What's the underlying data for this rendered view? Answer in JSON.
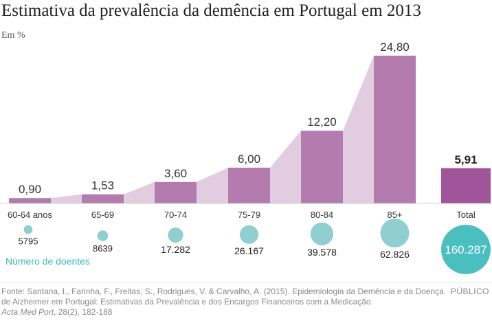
{
  "title": "Estimativa da prevalência da demência em Portugal em 2013",
  "subtitle": "Em %",
  "colors": {
    "bar": "#b47cae",
    "total_bar": "#a0549a",
    "area": "#e2cde0",
    "circle": "#8fcfd0",
    "total_circle": "#4bbfc0",
    "legend_text": "#3fb8b8"
  },
  "chart_data": {
    "type": "bar",
    "categories": [
      "60-64 anos",
      "65-69",
      "70-74",
      "75-79",
      "80-84",
      "85+"
    ],
    "values": [
      0.9,
      1.53,
      3.6,
      6.0,
      12.2,
      24.8
    ],
    "value_labels": [
      "0,90",
      "1,53",
      "3,60",
      "6,00",
      "12,20",
      "24,80"
    ],
    "total": {
      "label": "Total",
      "value": 5.91,
      "value_label": "5,91"
    },
    "ylabel": "Em %",
    "patients": {
      "legend": "Número de doentes",
      "values": [
        5795,
        8639,
        17282,
        26167,
        39578,
        62826
      ],
      "labels": [
        "5795",
        "8639",
        "17.282",
        "26.167",
        "39.578",
        "62.826"
      ],
      "total_value": 160287,
      "total_label": "160.287"
    }
  },
  "source": {
    "line1": "Fonte: Santana, I., Farinha, F., Freitas, S., Rodrigues, V. & Carvalho, A. (2015). Epidemiologia da Demência e da Doença",
    "line2": "de Alzheimer em Portugal: Estimativas da Prevalência e dos Encargos Financeiros com a Medicação.",
    "journal": "Acta Med Port",
    "line3": ", 28(2), 182-188"
  },
  "brand": "PÚBLICO"
}
